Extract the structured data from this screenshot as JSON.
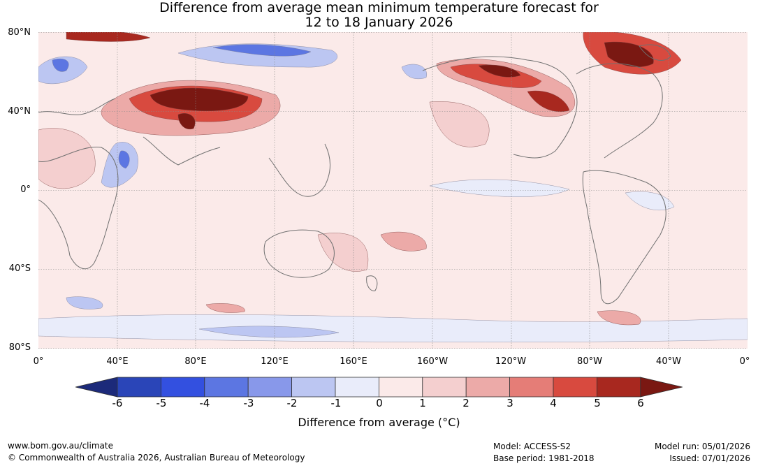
{
  "title": {
    "line1": "Difference from average mean minimum temperature forecast for",
    "line2": "12 to 18 January 2026"
  },
  "latitude_labels": [
    "80°N",
    "40°N",
    "0°",
    "40°S",
    "80°S"
  ],
  "longitude_labels": [
    "0°",
    "40°E",
    "80°E",
    "120°E",
    "160°E",
    "160°W",
    "120°W",
    "80°W",
    "40°W",
    "0°"
  ],
  "colorbar": {
    "ticks": [
      "-6",
      "-5",
      "-4",
      "-3",
      "-2",
      "-1",
      "0",
      "1",
      "2",
      "3",
      "4",
      "5",
      "6"
    ],
    "colors": [
      "#1c2a7a",
      "#2a45b8",
      "#3350e0",
      "#5c76e2",
      "#8898ea",
      "#bcc6f2",
      "#e9ecfa",
      "#fbeae9",
      "#f4cfcf",
      "#ecaaa8",
      "#e57d77",
      "#d84a3f",
      "#a8281f",
      "#7a1812"
    ],
    "label": "Difference from average (°C)"
  },
  "footer": {
    "website": "www.bom.gov.au/climate",
    "copyright": "© Commonwealth of Australia 2026, Australian Bureau of Meteorology",
    "model": "Model: ACCESS-S2",
    "base_period": "Base period: 1981-2018",
    "model_run": "Model run: 05/01/2026",
    "issued": "Issued: 07/01/2026"
  }
}
